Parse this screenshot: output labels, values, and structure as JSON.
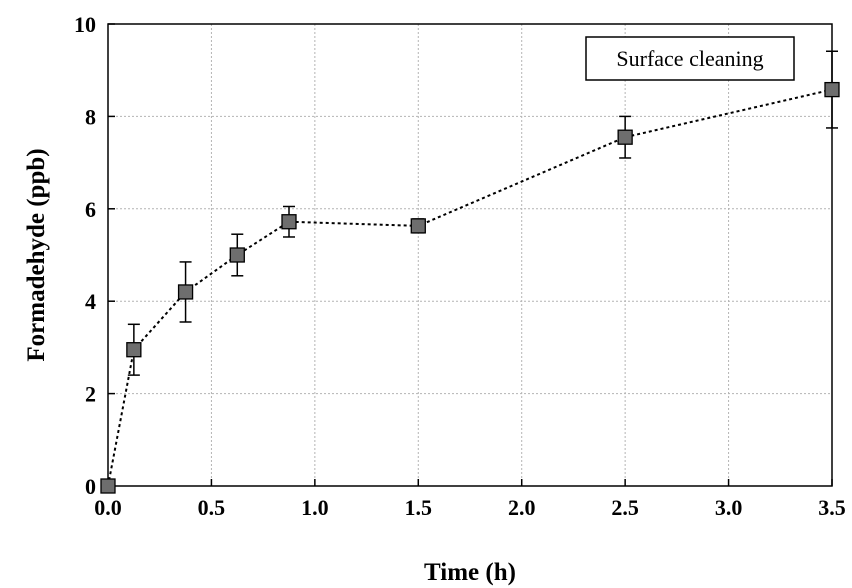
{
  "chart_data": {
    "type": "scatter",
    "title": "",
    "xlabel": "Time (h)",
    "ylabel": "Formadehyde (ppb)",
    "xlim": [
      0,
      3.5
    ],
    "ylim": [
      0,
      10
    ],
    "grid": true,
    "line_style": "dotted",
    "marker": "square",
    "legend": {
      "text": "Surface cleaning",
      "placement": "top-right"
    },
    "x_ticks": [
      "0.0",
      "0.5",
      "1.0",
      "1.5",
      "2.0",
      "2.5",
      "3.0",
      "3.5"
    ],
    "y_ticks": [
      "0",
      "2",
      "4",
      "6",
      "8",
      "10"
    ],
    "series": [
      {
        "x": [
          0.0,
          0.125,
          0.375,
          0.625,
          0.875,
          1.5,
          2.5,
          3.5
        ],
        "y": [
          0.0,
          2.95,
          4.2,
          5.0,
          5.72,
          5.63,
          7.55,
          8.58
        ],
        "err": [
          0.0,
          0.55,
          0.65,
          0.45,
          0.33,
          0.15,
          0.45,
          0.83
        ]
      }
    ],
    "colors": {
      "marker_fill": "#6e6e6e",
      "line": "#000000",
      "grid": "#b4b4b4"
    }
  }
}
